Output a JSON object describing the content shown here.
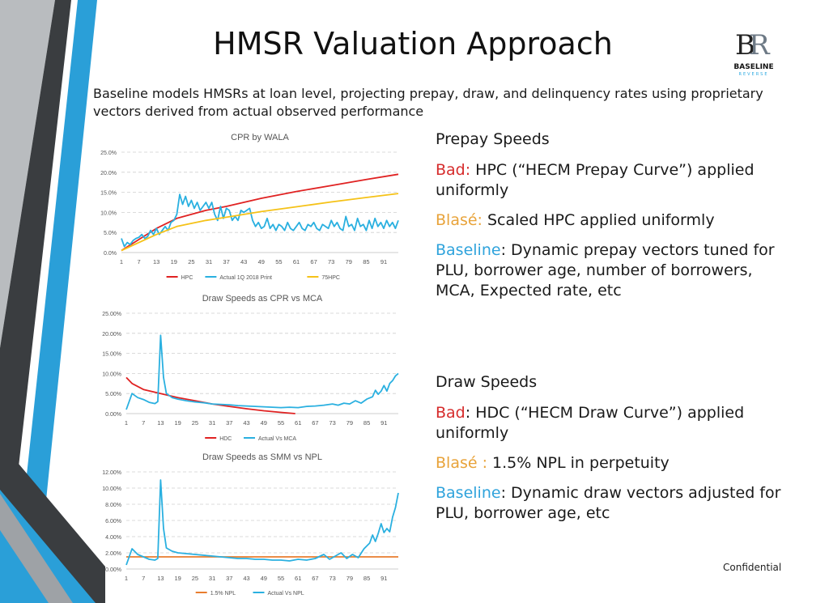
{
  "slide": {
    "title": "HMSR Valuation Approach",
    "intro": "Baseline models HMSRs at loan level, projecting prepay, draw, and delinquency rates using proprietary vectors derived from actual observed performance",
    "footer": "Confidential",
    "logo": {
      "name": "BASELINE",
      "sub": "REVERSE"
    }
  },
  "prepay": {
    "heading": "Prepay Speeds",
    "bad_label": "Bad:",
    "bad_text": " HPC (“HECM Prepay Curve”) applied uniformly",
    "blase_label": "Blasé:",
    "blase_text": " Scaled HPC applied uniformly",
    "baseline_label": "Baseline",
    "baseline_text": ": Dynamic prepay vectors tuned for PLU, borrower age, number of borrowers, MCA, Expected rate, etc"
  },
  "draw": {
    "heading": "Draw Speeds",
    "bad_label": "Bad",
    "bad_text": ": HDC (“HECM Draw Curve”) applied uniformly",
    "blase_label": "Blasé :",
    "blase_text": " 1.5% NPL in perpetuity",
    "baseline_label": "Baseline",
    "baseline_text": ": Dynamic draw vectors adjusted for PLU, borrower age, etc"
  },
  "colors": {
    "red": "#e02222",
    "blue": "#2ab0e0",
    "yellow": "#f5c218",
    "orange": "#e87d2e",
    "accent_blue": "#2fa3dc"
  },
  "chart_data": [
    {
      "type": "line",
      "title": "CPR by WALA",
      "xticks": [
        "1",
        "7",
        "13",
        "19",
        "25",
        "31",
        "37",
        "43",
        "49",
        "55",
        "61",
        "67",
        "73",
        "79",
        "85",
        "91"
      ],
      "yticks": [
        "0.0%",
        "5.0%",
        "10.0%",
        "15.0%",
        "20.0%",
        "25.0%"
      ],
      "ylim": [
        0,
        25
      ],
      "xlim": [
        1,
        96
      ],
      "grid": true,
      "legend_position": "bottom",
      "series": [
        {
          "name": "HPC",
          "color": "#e02222",
          "points": [
            [
              1,
              0.5
            ],
            [
              13,
              6
            ],
            [
              20,
              8.5
            ],
            [
              30,
              10.5
            ],
            [
              37,
              11.5
            ],
            [
              49,
              13.5
            ],
            [
              61,
              15.2
            ],
            [
              73,
              16.7
            ],
            [
              85,
              18.2
            ],
            [
              96,
              19.5
            ]
          ]
        },
        {
          "name": "Actual 1Q 2018 Print",
          "color": "#2ab0e0",
          "points": [
            [
              1,
              3.5
            ],
            [
              2,
              1.5
            ],
            [
              3,
              2.5
            ],
            [
              4,
              2.0
            ],
            [
              5,
              3.0
            ],
            [
              6,
              3.5
            ],
            [
              7,
              3.8
            ],
            [
              8,
              4.5
            ],
            [
              9,
              3.5
            ],
            [
              10,
              4.0
            ],
            [
              11,
              5.5
            ],
            [
              12,
              4.5
            ],
            [
              13,
              6.0
            ],
            [
              14,
              4.5
            ],
            [
              15,
              5.5
            ],
            [
              16,
              6.5
            ],
            [
              17,
              5.5
            ],
            [
              18,
              7.5
            ],
            [
              19,
              8.0
            ],
            [
              20,
              9.5
            ],
            [
              21,
              14.5
            ],
            [
              22,
              12.0
            ],
            [
              23,
              14.0
            ],
            [
              24,
              11.5
            ],
            [
              25,
              13.0
            ],
            [
              26,
              11.0
            ],
            [
              27,
              12.5
            ],
            [
              28,
              10.5
            ],
            [
              29,
              11.5
            ],
            [
              30,
              12.5
            ],
            [
              31,
              11.0
            ],
            [
              32,
              12.5
            ],
            [
              33,
              9.5
            ],
            [
              34,
              8.0
            ],
            [
              35,
              11.5
            ],
            [
              36,
              8.5
            ],
            [
              37,
              11.0
            ],
            [
              38,
              10.5
            ],
            [
              39,
              8.0
            ],
            [
              40,
              9.0
            ],
            [
              41,
              8.0
            ],
            [
              42,
              10.5
            ],
            [
              43,
              10.0
            ],
            [
              44,
              10.5
            ],
            [
              45,
              11.0
            ],
            [
              46,
              8.0
            ],
            [
              47,
              6.5
            ],
            [
              48,
              7.5
            ],
            [
              49,
              6.0
            ],
            [
              50,
              6.5
            ],
            [
              51,
              8.5
            ],
            [
              52,
              6.0
            ],
            [
              53,
              7.0
            ],
            [
              54,
              5.5
            ],
            [
              55,
              7.0
            ],
            [
              56,
              6.5
            ],
            [
              57,
              5.5
            ],
            [
              58,
              7.5
            ],
            [
              59,
              6.0
            ],
            [
              60,
              5.5
            ],
            [
              61,
              6.5
            ],
            [
              62,
              7.5
            ],
            [
              63,
              6.0
            ],
            [
              64,
              5.5
            ],
            [
              65,
              7.0
            ],
            [
              66,
              6.5
            ],
            [
              67,
              7.5
            ],
            [
              68,
              6.0
            ],
            [
              69,
              5.5
            ],
            [
              70,
              7.0
            ],
            [
              71,
              6.5
            ],
            [
              72,
              6.0
            ],
            [
              73,
              8.0
            ],
            [
              74,
              6.5
            ],
            [
              75,
              7.5
            ],
            [
              76,
              6.0
            ],
            [
              77,
              5.5
            ],
            [
              78,
              9.0
            ],
            [
              79,
              6.5
            ],
            [
              80,
              7.0
            ],
            [
              81,
              5.5
            ],
            [
              82,
              8.5
            ],
            [
              83,
              6.5
            ],
            [
              84,
              7.0
            ],
            [
              85,
              5.5
            ],
            [
              86,
              8.0
            ],
            [
              87,
              6.0
            ],
            [
              88,
              8.5
            ],
            [
              89,
              6.5
            ],
            [
              90,
              7.5
            ],
            [
              91,
              6.0
            ],
            [
              92,
              8.0
            ],
            [
              93,
              6.5
            ],
            [
              94,
              7.5
            ],
            [
              95,
              6.0
            ],
            [
              96,
              8.0
            ]
          ]
        },
        {
          "name": "75HPC",
          "color": "#f5c218",
          "points": [
            [
              1,
              0.5
            ],
            [
              13,
              4.5
            ],
            [
              20,
              6.5
            ],
            [
              30,
              8.0
            ],
            [
              37,
              8.8
            ],
            [
              49,
              10.2
            ],
            [
              61,
              11.4
            ],
            [
              73,
              12.6
            ],
            [
              85,
              13.7
            ],
            [
              96,
              14.7
            ]
          ]
        }
      ]
    },
    {
      "type": "line",
      "title": "Draw Speeds as CPR vs MCA",
      "xticks": [
        "1",
        "7",
        "13",
        "19",
        "25",
        "31",
        "37",
        "43",
        "49",
        "55",
        "61",
        "67",
        "73",
        "79",
        "85",
        "91"
      ],
      "yticks": [
        "0.00%",
        "5.00%",
        "10.00%",
        "15.00%",
        "20.00%",
        "25.00%"
      ],
      "ylim": [
        0,
        25
      ],
      "xlim": [
        1,
        96
      ],
      "grid": true,
      "legend_position": "bottom",
      "series": [
        {
          "name": "HDC",
          "color": "#e02222",
          "points": [
            [
              1,
              9.0
            ],
            [
              3,
              7.5
            ],
            [
              7,
              6.0
            ],
            [
              13,
              5.0
            ],
            [
              19,
              4.0
            ],
            [
              25,
              3.2
            ],
            [
              31,
              2.4
            ],
            [
              37,
              1.8
            ],
            [
              43,
              1.2
            ],
            [
              49,
              0.7
            ],
            [
              55,
              0.3
            ],
            [
              60,
              0.0
            ]
          ]
        },
        {
          "name": "Actual Vs MCA",
          "color": "#2ab0e0",
          "points": [
            [
              1,
              1.0
            ],
            [
              3,
              5.0
            ],
            [
              5,
              4.0
            ],
            [
              7,
              3.5
            ],
            [
              9,
              2.8
            ],
            [
              11,
              2.5
            ],
            [
              12,
              3.0
            ],
            [
              13,
              19.5
            ],
            [
              14,
              9.0
            ],
            [
              15,
              5.0
            ],
            [
              17,
              4.0
            ],
            [
              19,
              3.6
            ],
            [
              22,
              3.2
            ],
            [
              25,
              2.9
            ],
            [
              28,
              2.7
            ],
            [
              31,
              2.4
            ],
            [
              34,
              2.3
            ],
            [
              37,
              2.2
            ],
            [
              40,
              2.0
            ],
            [
              43,
              1.9
            ],
            [
              46,
              1.8
            ],
            [
              49,
              1.7
            ],
            [
              52,
              1.6
            ],
            [
              55,
              1.5
            ],
            [
              58,
              1.6
            ],
            [
              61,
              1.5
            ],
            [
              64,
              1.8
            ],
            [
              67,
              1.9
            ],
            [
              70,
              2.1
            ],
            [
              73,
              2.4
            ],
            [
              75,
              2.1
            ],
            [
              77,
              2.6
            ],
            [
              79,
              2.4
            ],
            [
              81,
              3.2
            ],
            [
              83,
              2.6
            ],
            [
              85,
              3.6
            ],
            [
              87,
              4.2
            ],
            [
              88,
              5.8
            ],
            [
              89,
              4.8
            ],
            [
              90,
              5.6
            ],
            [
              91,
              7.0
            ],
            [
              92,
              5.6
            ],
            [
              93,
              7.5
            ],
            [
              94,
              8.2
            ],
            [
              95,
              9.4
            ],
            [
              96,
              10.0
            ]
          ]
        }
      ]
    },
    {
      "type": "line",
      "title": "Draw Speeds as SMM vs NPL",
      "xticks": [
        "1",
        "7",
        "13",
        "19",
        "25",
        "31",
        "37",
        "43",
        "49",
        "55",
        "61",
        "67",
        "73",
        "79",
        "85",
        "91"
      ],
      "yticks": [
        "0.00%",
        "2.00%",
        "4.00%",
        "6.00%",
        "8.00%",
        "10.00%",
        "12.00%"
      ],
      "ylim": [
        0,
        12
      ],
      "xlim": [
        1,
        96
      ],
      "grid": true,
      "legend_position": "bottom",
      "series": [
        {
          "name": "1.5% NPL",
          "color": "#e87d2e",
          "points": [
            [
              1,
              1.5
            ],
            [
              96,
              1.5
            ]
          ]
        },
        {
          "name": "Actual Vs NPL",
          "color": "#2ab0e0",
          "points": [
            [
              1,
              0.5
            ],
            [
              3,
              2.5
            ],
            [
              5,
              1.8
            ],
            [
              7,
              1.5
            ],
            [
              9,
              1.2
            ],
            [
              11,
              1.1
            ],
            [
              12,
              1.3
            ],
            [
              13,
              11.0
            ],
            [
              14,
              5.0
            ],
            [
              15,
              2.6
            ],
            [
              17,
              2.2
            ],
            [
              19,
              2.0
            ],
            [
              22,
              1.9
            ],
            [
              25,
              1.8
            ],
            [
              28,
              1.7
            ],
            [
              31,
              1.6
            ],
            [
              34,
              1.5
            ],
            [
              37,
              1.4
            ],
            [
              40,
              1.3
            ],
            [
              43,
              1.3
            ],
            [
              46,
              1.2
            ],
            [
              49,
              1.2
            ],
            [
              52,
              1.1
            ],
            [
              55,
              1.1
            ],
            [
              58,
              1.0
            ],
            [
              61,
              1.2
            ],
            [
              64,
              1.1
            ],
            [
              67,
              1.3
            ],
            [
              70,
              1.8
            ],
            [
              72,
              1.2
            ],
            [
              74,
              1.6
            ],
            [
              76,
              2.0
            ],
            [
              78,
              1.3
            ],
            [
              80,
              1.8
            ],
            [
              82,
              1.4
            ],
            [
              84,
              2.5
            ],
            [
              86,
              3.2
            ],
            [
              87,
              4.2
            ],
            [
              88,
              3.4
            ],
            [
              89,
              4.4
            ],
            [
              90,
              5.6
            ],
            [
              91,
              4.5
            ],
            [
              92,
              5.0
            ],
            [
              93,
              4.6
            ],
            [
              94,
              6.4
            ],
            [
              95,
              7.6
            ],
            [
              96,
              9.4
            ]
          ]
        }
      ]
    }
  ]
}
